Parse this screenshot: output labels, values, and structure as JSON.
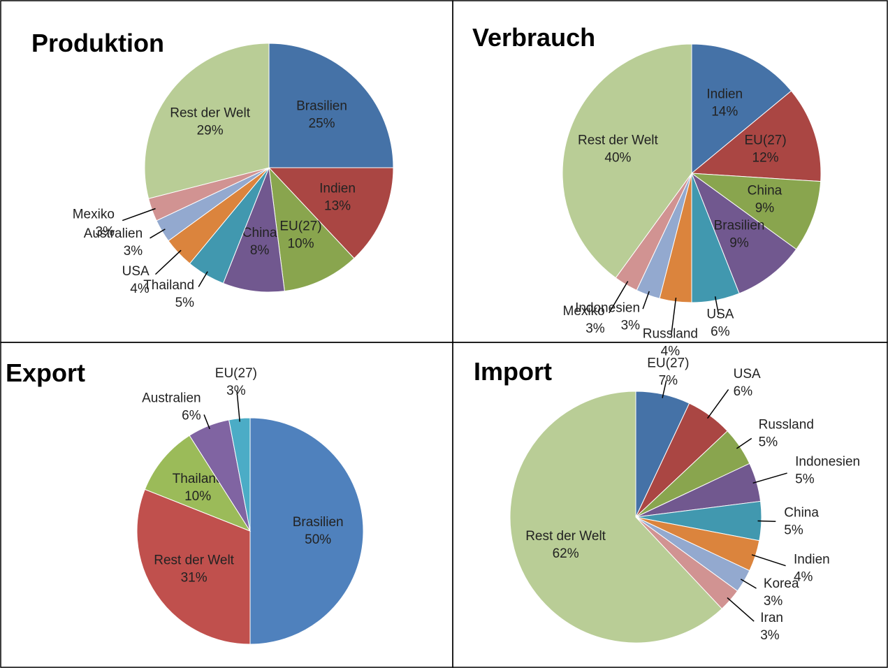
{
  "chart_data": [
    {
      "type": "pie",
      "title": "Produktion",
      "categories": [
        "Brasilien",
        "Indien",
        "EU(27)",
        "China",
        "Thailand",
        "USA",
        "Australien",
        "Mexiko",
        "Rest der Welt"
      ],
      "values": [
        25,
        13,
        10,
        8,
        5,
        4,
        3,
        3,
        29
      ],
      "value_labels": [
        "25%",
        "13%",
        "10%",
        "8%",
        "5%",
        "4%",
        "3%",
        "3%",
        "29%"
      ],
      "colors": [
        "#4572a7",
        "#aa4643",
        "#89a54e",
        "#71588f",
        "#4198af",
        "#db843d",
        "#93a9cf",
        "#d19392",
        "#b9cd96"
      ]
    },
    {
      "type": "pie",
      "title": "Verbrauch",
      "categories": [
        "Indien",
        "EU(27)",
        "China",
        "Brasilien",
        "USA",
        "Russland",
        "Indonesien",
        "Mexiko",
        "Rest der Welt"
      ],
      "values": [
        14,
        12,
        9,
        9,
        6,
        4,
        3,
        3,
        40
      ],
      "value_labels": [
        "14%",
        "12%",
        "9%",
        "9%",
        "6%",
        "4%",
        "3%",
        "3%",
        "40%"
      ],
      "colors": [
        "#4572a7",
        "#aa4643",
        "#89a54e",
        "#71588f",
        "#4198af",
        "#db843d",
        "#93a9cf",
        "#d19392",
        "#b9cd96"
      ]
    },
    {
      "type": "pie",
      "title": "Export",
      "categories": [
        "Brasilien",
        "Rest der Welt",
        "Thailand",
        "Australien",
        "EU(27)"
      ],
      "values": [
        50,
        31,
        10,
        6,
        3
      ],
      "value_labels": [
        "50%",
        "31%",
        "10%",
        "6%",
        "3%"
      ],
      "colors": [
        "#4f81bd",
        "#c0504d",
        "#9bbb59",
        "#8064a2",
        "#4bacc6"
      ]
    },
    {
      "type": "pie",
      "title": "Import",
      "categories": [
        "EU(27)",
        "USA",
        "Russland",
        "Indonesien",
        "China",
        "Indien",
        "Korea",
        "Iran",
        "Rest der Welt"
      ],
      "values": [
        7,
        6,
        5,
        5,
        5,
        4,
        3,
        3,
        62
      ],
      "value_labels": [
        "7%",
        "6%",
        "5%",
        "5%",
        "5%",
        "4%",
        "3%",
        "3%",
        "62%"
      ],
      "colors": [
        "#4572a7",
        "#aa4643",
        "#89a54e",
        "#71588f",
        "#4198af",
        "#db843d",
        "#93a9cf",
        "#d19392",
        "#b9cd96"
      ]
    }
  ]
}
